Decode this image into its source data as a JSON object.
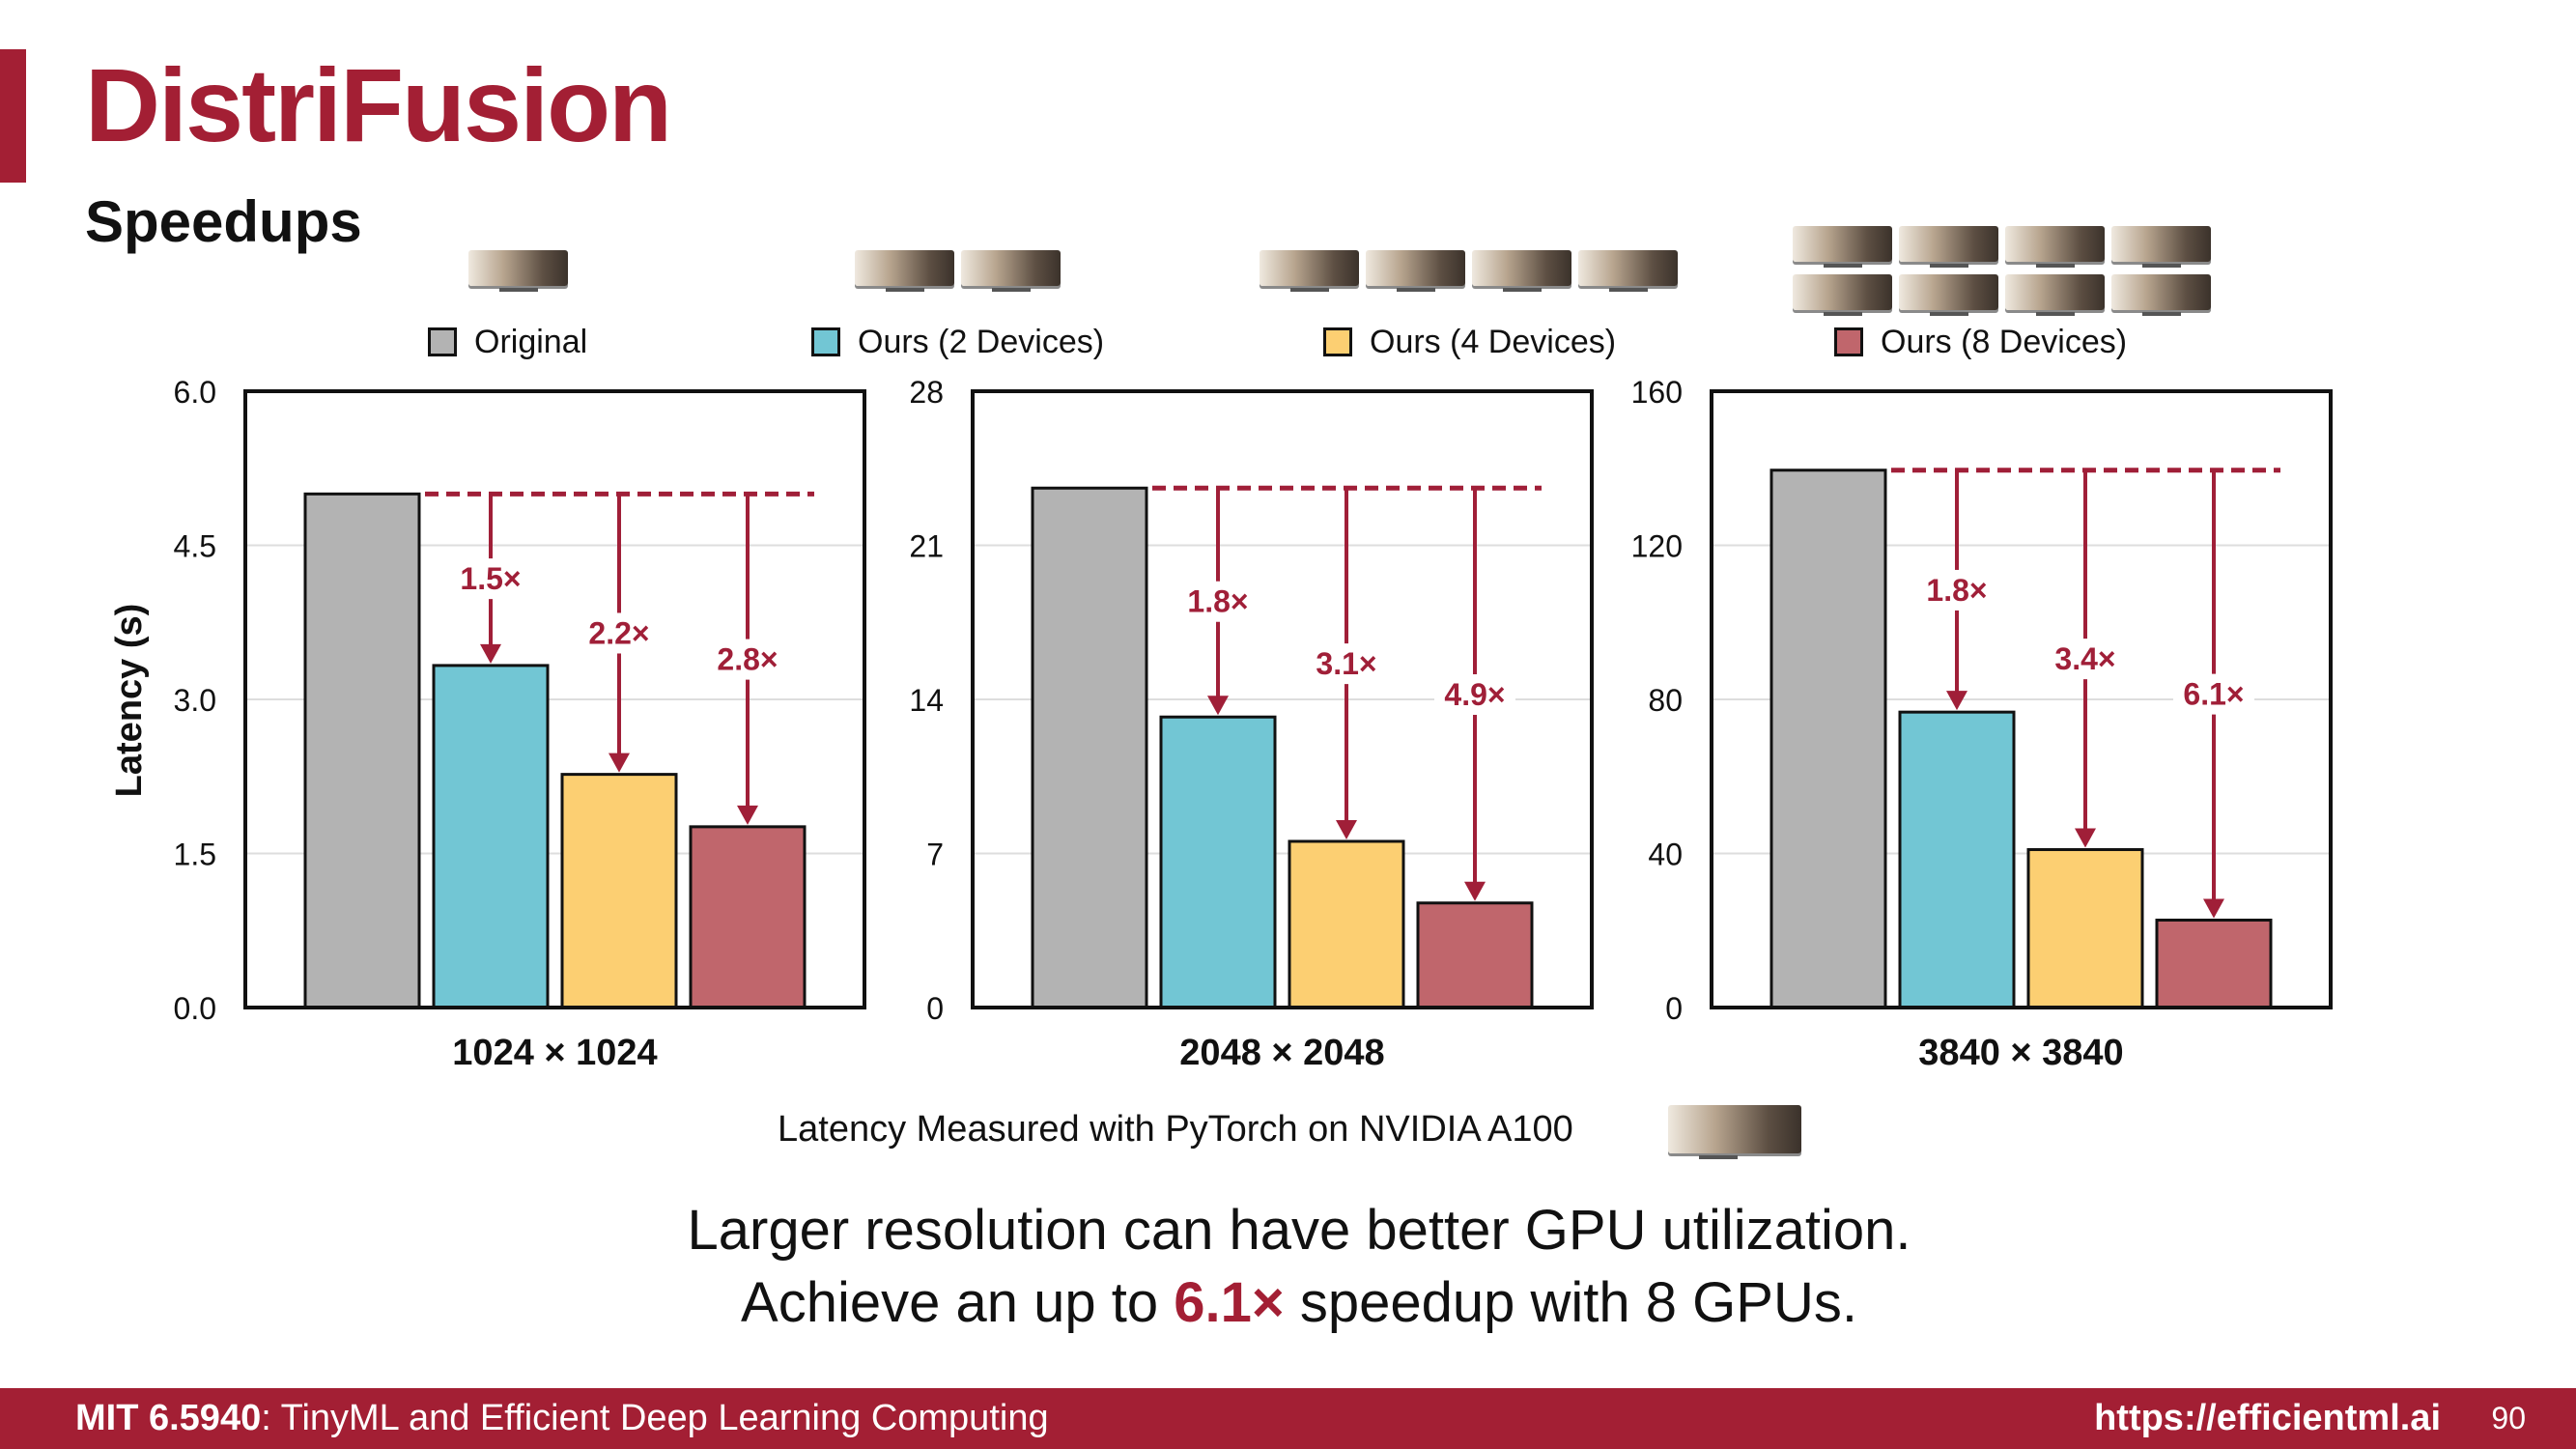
{
  "slide": {
    "title": "DistriFusion",
    "subtitle": "Speedups",
    "measurement_note": "Latency Measured with PyTorch on NVIDIA A100",
    "takeaway_line1": "Larger resolution can have better GPU utilization.",
    "takeaway_line2_prefix": "Achieve an up to ",
    "takeaway_line2_highlight": "6.1×",
    "takeaway_line2_suffix": " speedup with 8 GPUs."
  },
  "footer": {
    "course_code": "MIT 6.5940",
    "course_name": ": TinyML and Efficient Deep Learning Computing",
    "url": "https://efficientml.ai",
    "page_number": "90"
  },
  "legend": [
    {
      "label": "Original",
      "color": "#b3b3b3",
      "gpus": 1
    },
    {
      "label": "Ours (2 Devices)",
      "color": "#72c6d4",
      "gpus": 2
    },
    {
      "label": "Ours (4 Devices)",
      "color": "#fccf72",
      "gpus": 4
    },
    {
      "label": "Ours (8 Devices)",
      "color": "#c0666c",
      "gpus": 8
    }
  ],
  "icons": {
    "gpu": "gpu-card-icon",
    "arrow": "down-arrow-icon"
  },
  "colors": {
    "accent": "#a31f34",
    "arrow": "#a01f38"
  },
  "chart_data": [
    {
      "type": "bar",
      "xlabel": "1024 × 1024",
      "ylabel": "Latency (s)",
      "categories": [
        "Original",
        "Ours (2 Devices)",
        "Ours (4 Devices)",
        "Ours (8 Devices)"
      ],
      "values": [
        5.0,
        3.33,
        2.27,
        1.76
      ],
      "speedups": [
        "1.5×",
        "2.2×",
        "2.8×"
      ],
      "yticks": [
        "6.0",
        "4.5",
        "3.0",
        "1.5",
        "0.0"
      ],
      "ylim": [
        0,
        6
      ],
      "grid": true
    },
    {
      "type": "bar",
      "xlabel": "2048 × 2048",
      "ylabel": "",
      "categories": [
        "Original",
        "Ours (2 Devices)",
        "Ours (4 Devices)",
        "Ours (8 Devices)"
      ],
      "values": [
        23.6,
        13.2,
        7.55,
        4.75
      ],
      "speedups": [
        "1.8×",
        "3.1×",
        "4.9×"
      ],
      "yticks": [
        "28",
        "21",
        "14",
        "7",
        "0"
      ],
      "ylim": [
        0,
        28
      ],
      "grid": true
    },
    {
      "type": "bar",
      "xlabel": "3840 × 3840",
      "ylabel": "",
      "categories": [
        "Original",
        "Ours (2 Devices)",
        "Ours (4 Devices)",
        "Ours (8 Devices)"
      ],
      "values": [
        139.5,
        76.7,
        41.0,
        22.7
      ],
      "speedups": [
        "1.8×",
        "3.4×",
        "6.1×"
      ],
      "yticks": [
        "160",
        "120",
        "80",
        "40",
        "0"
      ],
      "ylim": [
        0,
        160
      ],
      "grid": true
    }
  ]
}
